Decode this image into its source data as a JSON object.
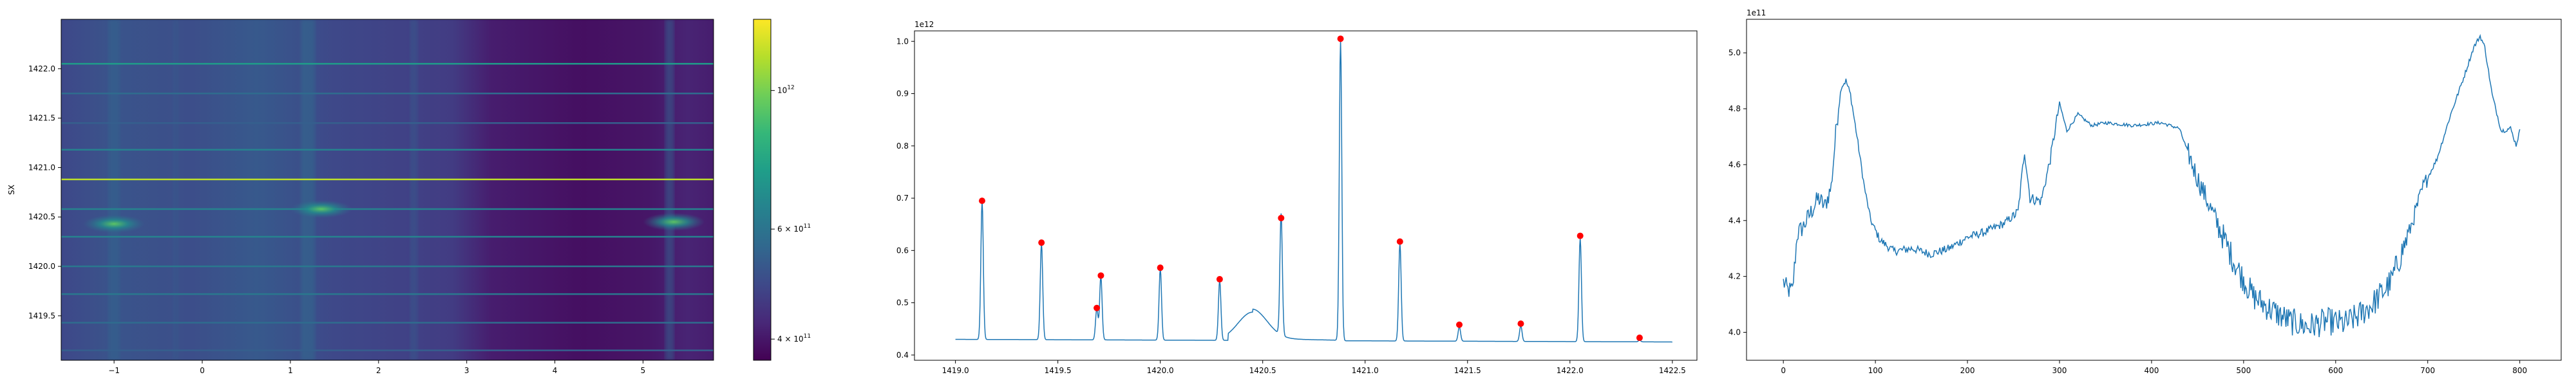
{
  "chart_data": [
    {
      "type": "heatmap",
      "ylabel": "SX",
      "xlabel": "",
      "xlim": [
        -1.6,
        5.8
      ],
      "ylim": [
        1419.05,
        1422.5
      ],
      "xticks": [
        -1,
        0,
        1,
        2,
        3,
        4,
        5
      ],
      "xtick_labels": [
        "−1",
        "0",
        "1",
        "2",
        "3",
        "4",
        "5"
      ],
      "yticks": [
        1419.5,
        1420.0,
        1420.5,
        1421.0,
        1421.5,
        1422.0
      ],
      "ytick_labels": [
        "1419.5",
        "1420.0",
        "1420.5",
        "1421.0",
        "1421.5",
        "1422.0"
      ],
      "colormap": "viridis",
      "color_scale": "log",
      "colorbar": {
        "vmin": 370000000000,
        "vmax": 1300000000000,
        "ticks": [
          1000000000000,
          600000000000,
          400000000000
        ],
        "tick_labels": [
          {
            "base": "10",
            "exp": "12"
          },
          {
            "base": "6 × 10",
            "exp": "11"
          },
          {
            "base": "4 × 10",
            "exp": "11"
          }
        ]
      },
      "horizontal_lines": [
        {
          "y": 1422.05,
          "level": 0.55
        },
        {
          "y": 1421.75,
          "level": 0.35
        },
        {
          "y": 1421.45,
          "level": 0.3
        },
        {
          "y": 1421.18,
          "level": 0.45
        },
        {
          "y": 1420.88,
          "level": 0.9
        },
        {
          "y": 1420.58,
          "level": 0.45
        },
        {
          "y": 1420.3,
          "level": 0.45
        },
        {
          "y": 1420.0,
          "level": 0.4
        },
        {
          "y": 1419.72,
          "level": 0.4
        },
        {
          "y": 1419.43,
          "level": 0.35
        },
        {
          "y": 1419.15,
          "level": 0.3
        }
      ],
      "hotspots": [
        {
          "x": -1.0,
          "y": 1420.43,
          "level": 0.75
        },
        {
          "x": 1.35,
          "y": 1420.58,
          "level": 0.7
        },
        {
          "x": 5.35,
          "y": 1420.45,
          "level": 0.75
        }
      ]
    },
    {
      "type": "line",
      "xlim": [
        1418.8,
        1422.62
      ],
      "ylim": [
        0.39,
        1.02
      ],
      "xticks": [
        1419.0,
        1419.5,
        1420.0,
        1420.5,
        1421.0,
        1421.5,
        1422.0,
        1422.5
      ],
      "xtick_labels": [
        "1419.0",
        "1419.5",
        "1420.0",
        "1420.5",
        "1421.0",
        "1421.5",
        "1422.0",
        "1422.5"
      ],
      "yticks": [
        0.4,
        0.5,
        0.6,
        0.7,
        0.8,
        0.9,
        1.0
      ],
      "ytick_labels": [
        "0.4",
        "0.5",
        "0.6",
        "0.7",
        "0.8",
        "0.9",
        "1.0"
      ],
      "offset_text": "1e12",
      "baseline": 0.43,
      "baseline_end": 0.425,
      "bump": {
        "x": 1420.45,
        "y": 0.49,
        "width": 0.1
      },
      "series_color": "#1f77b4",
      "marker_color": "#ff0000",
      "peaks": [
        {
          "x": 1419.13,
          "y": 0.695
        },
        {
          "x": 1419.42,
          "y": 0.615
        },
        {
          "x": 1419.69,
          "y": 0.49
        },
        {
          "x": 1419.71,
          "y": 0.552
        },
        {
          "x": 1420.0,
          "y": 0.567
        },
        {
          "x": 1420.29,
          "y": 0.545
        },
        {
          "x": 1420.59,
          "y": 0.662
        },
        {
          "x": 1420.88,
          "y": 1.005
        },
        {
          "x": 1421.17,
          "y": 0.617
        },
        {
          "x": 1421.46,
          "y": 0.458
        },
        {
          "x": 1421.76,
          "y": 0.46
        },
        {
          "x": 1422.05,
          "y": 0.628
        },
        {
          "x": 1422.34,
          "y": 0.433
        }
      ]
    },
    {
      "type": "line",
      "xlim": [
        -40,
        845
      ],
      "ylim": [
        3.9,
        5.12
      ],
      "xticks": [
        0,
        100,
        200,
        300,
        400,
        500,
        600,
        700,
        800
      ],
      "xtick_labels": [
        "0",
        "100",
        "200",
        "300",
        "400",
        "500",
        "600",
        "700",
        "800"
      ],
      "yticks": [
        4.0,
        4.2,
        4.4,
        4.6,
        4.8,
        5.0
      ],
      "ytick_labels": [
        "4.0",
        "4.2",
        "4.4",
        "4.6",
        "4.8",
        "5.0"
      ],
      "offset_text": "1e11",
      "series_color": "#1f77b4",
      "x_range": [
        0,
        800
      ],
      "anchors": [
        [
          0,
          4.18
        ],
        [
          5,
          4.15
        ],
        [
          10,
          4.15
        ],
        [
          15,
          4.35
        ],
        [
          22,
          4.38
        ],
        [
          30,
          4.43
        ],
        [
          38,
          4.48
        ],
        [
          45,
          4.45
        ],
        [
          52,
          4.52
        ],
        [
          58,
          4.75
        ],
        [
          63,
          4.88
        ],
        [
          68,
          4.9
        ],
        [
          73,
          4.85
        ],
        [
          80,
          4.7
        ],
        [
          88,
          4.52
        ],
        [
          95,
          4.4
        ],
        [
          105,
          4.33
        ],
        [
          120,
          4.29
        ],
        [
          140,
          4.3
        ],
        [
          160,
          4.28
        ],
        [
          180,
          4.3
        ],
        [
          200,
          4.34
        ],
        [
          220,
          4.36
        ],
        [
          240,
          4.39
        ],
        [
          255,
          4.43
        ],
        [
          262,
          4.65
        ],
        [
          268,
          4.48
        ],
        [
          280,
          4.47
        ],
        [
          290,
          4.62
        ],
        [
          300,
          4.82
        ],
        [
          308,
          4.72
        ],
        [
          320,
          4.78
        ],
        [
          335,
          4.74
        ],
        [
          350,
          4.75
        ],
        [
          380,
          4.74
        ],
        [
          410,
          4.75
        ],
        [
          430,
          4.73
        ],
        [
          450,
          4.55
        ],
        [
          470,
          4.4
        ],
        [
          490,
          4.25
        ],
        [
          510,
          4.13
        ],
        [
          530,
          4.08
        ],
        [
          550,
          4.04
        ],
        [
          570,
          4.02
        ],
        [
          590,
          4.04
        ],
        [
          610,
          4.03
        ],
        [
          625,
          4.06
        ],
        [
          640,
          4.1
        ],
        [
          660,
          4.18
        ],
        [
          680,
          4.36
        ],
        [
          695,
          4.52
        ],
        [
          710,
          4.62
        ],
        [
          725,
          4.78
        ],
        [
          740,
          4.92
        ],
        [
          750,
          5.02
        ],
        [
          757,
          5.06
        ],
        [
          762,
          5.02
        ],
        [
          770,
          4.85
        ],
        [
          780,
          4.72
        ],
        [
          790,
          4.73
        ],
        [
          796,
          4.67
        ],
        [
          800,
          4.72
        ]
      ]
    }
  ]
}
